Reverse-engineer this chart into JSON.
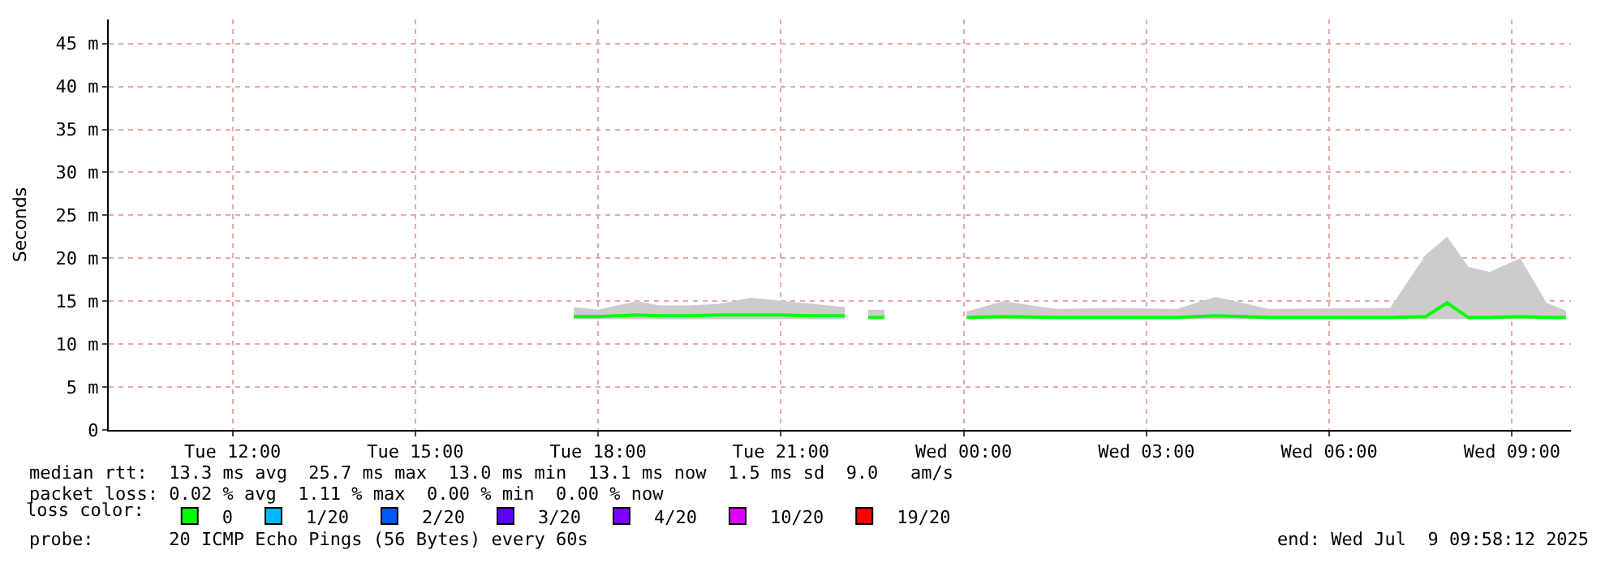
{
  "chart_data": {
    "type": "line",
    "ylabel": "Seconds",
    "legend_title": "loss color:",
    "xlim": [
      "2025-07-08T09:58",
      "2025-07-09T09:58"
    ],
    "xticks": [
      {
        "value": "2025-07-08T12:00",
        "label": "Tue 12:00"
      },
      {
        "value": "2025-07-08T15:00",
        "label": "Tue 15:00"
      },
      {
        "value": "2025-07-08T18:00",
        "label": "Tue 18:00"
      },
      {
        "value": "2025-07-08T21:00",
        "label": "Tue 21:00"
      },
      {
        "value": "2025-07-09T00:00",
        "label": "Wed 00:00"
      },
      {
        "value": "2025-07-09T03:00",
        "label": "Wed 03:00"
      },
      {
        "value": "2025-07-09T06:00",
        "label": "Wed 06:00"
      },
      {
        "value": "2025-07-09T09:00",
        "label": "Wed 09:00"
      }
    ],
    "ylim": [
      0,
      47.8
    ],
    "yticks": [
      0,
      {
        "value": 5,
        "label": "5 m"
      },
      {
        "value": 10,
        "label": "10 m"
      },
      {
        "value": 15,
        "label": "15 m"
      },
      {
        "value": 20,
        "label": "20 m"
      },
      {
        "value": 25,
        "label": "25 m"
      },
      {
        "value": 30,
        "label": "30 m"
      },
      {
        "value": 35,
        "label": "35 m"
      },
      {
        "value": 40,
        "label": "40 m"
      },
      {
        "value": 45,
        "label": "45 m"
      }
    ],
    "grid": true,
    "legend": "bottom left",
    "marker": "none",
    "line_style": "solid",
    "x": [
      "2025-07-08T17:36",
      "2025-07-08T18:00",
      "2025-07-08T18:38",
      "2025-07-08T19:00",
      "2025-07-08T19:30",
      "2025-07-08T20:00",
      "2025-07-08T20:30",
      "2025-07-08T21:00",
      "2025-07-08T21:30",
      "2025-07-08T22:03",
      "2025-07-08T22:15",
      "2025-07-08T22:26",
      "2025-07-08T22:42",
      "2025-07-08T23:00",
      "2025-07-09T00:03",
      "2025-07-09T00:39",
      "2025-07-09T01:30",
      "2025-07-09T02:30",
      "2025-07-09T03:30",
      "2025-07-09T04:08",
      "2025-07-09T05:00",
      "2025-07-09T06:00",
      "2025-07-09T07:00",
      "2025-07-09T07:35",
      "2025-07-09T07:56",
      "2025-07-09T08:17",
      "2025-07-09T08:38",
      "2025-07-09T09:08",
      "2025-07-09T09:34",
      "2025-07-09T09:53"
    ],
    "series": [
      {
        "color": "#00ff00",
        "values": [
          13.2,
          13.2,
          13.4,
          13.3,
          13.3,
          13.4,
          13.4,
          13.4,
          13.3,
          13.3,
          null,
          13.1,
          13.1,
          null,
          13.1,
          13.2,
          13.1,
          13.1,
          13.1,
          13.3,
          13.1,
          13.1,
          13.1,
          13.2,
          14.8,
          13.1,
          13.1,
          13.2,
          13.1,
          13.1
        ],
        "lower": [
          12.9,
          12.9,
          12.9,
          12.9,
          12.9,
          12.9,
          12.9,
          12.9,
          12.9,
          12.9,
          null,
          12.9,
          12.9,
          null,
          12.9,
          12.9,
          12.9,
          12.9,
          12.9,
          12.9,
          12.9,
          12.9,
          12.9,
          12.9,
          12.8,
          12.9,
          12.9,
          12.9,
          12.9,
          12.9
        ],
        "upper": [
          14.3,
          14.0,
          15.0,
          14.5,
          14.5,
          14.7,
          15.4,
          15.0,
          14.7,
          14.3,
          null,
          14.0,
          14.0,
          null,
          13.8,
          15.0,
          14.1,
          14.2,
          14.1,
          15.5,
          14.1,
          14.2,
          14.2,
          20.4,
          22.5,
          19.0,
          18.4,
          20.0,
          14.8,
          13.9
        ]
      },
      {
        "type": "scatter",
        "name": "0",
        "color": "#00ff00",
        "values": [
          null,
          null,
          null,
          null,
          null,
          null,
          null,
          null,
          null,
          null,
          null,
          null,
          null,
          null,
          null,
          null,
          null,
          null,
          null,
          null,
          null,
          null,
          null,
          null,
          null,
          null,
          null,
          null,
          null,
          null
        ]
      },
      {
        "type": "scatter",
        "name": "1/20",
        "color": "#00b8ff",
        "values": [
          null,
          null,
          null,
          null,
          null,
          null,
          null,
          null,
          null,
          null,
          null,
          null,
          null,
          null,
          null,
          null,
          null,
          null,
          null,
          null,
          null,
          null,
          null,
          null,
          null,
          null,
          null,
          null,
          null,
          null
        ]
      },
      {
        "type": "scatter",
        "name": "2/20",
        "color": "#0059ff",
        "values": [
          null,
          null,
          null,
          null,
          null,
          null,
          null,
          null,
          null,
          null,
          null,
          null,
          null,
          null,
          null,
          null,
          null,
          null,
          null,
          null,
          null,
          null,
          null,
          null,
          null,
          null,
          null,
          null,
          null,
          null
        ]
      },
      {
        "type": "scatter",
        "name": "3/20",
        "color": "#5e00ff",
        "values": [
          null,
          null,
          null,
          null,
          null,
          null,
          null,
          null,
          null,
          null,
          null,
          null,
          null,
          null,
          null,
          null,
          null,
          null,
          null,
          null,
          null,
          null,
          null,
          null,
          null,
          null,
          null,
          null,
          null,
          null
        ]
      },
      {
        "type": "scatter",
        "name": "4/20",
        "color": "#7e00ff",
        "values": [
          null,
          null,
          null,
          null,
          null,
          null,
          null,
          null,
          null,
          null,
          null,
          null,
          null,
          null,
          null,
          null,
          null,
          null,
          null,
          null,
          null,
          null,
          null,
          null,
          null,
          null,
          null,
          null,
          null,
          null
        ]
      },
      {
        "type": "scatter",
        "name": "10/20",
        "color": "#dd00ff",
        "values": [
          null,
          null,
          null,
          null,
          null,
          null,
          null,
          null,
          null,
          null,
          null,
          null,
          null,
          null,
          null,
          null,
          null,
          null,
          null,
          null,
          null,
          null,
          null,
          null,
          null,
          null,
          null,
          null,
          null,
          null
        ]
      },
      {
        "type": "scatter",
        "name": "19/20",
        "color": "#ff0000",
        "values": [
          null,
          null,
          null,
          null,
          null,
          null,
          null,
          null,
          null,
          null,
          null,
          null,
          null,
          null,
          null,
          null,
          null,
          null,
          null,
          null,
          null,
          null,
          null,
          null,
          null,
          null,
          null,
          null,
          null,
          null
        ]
      }
    ],
    "annotations": [
      "median rtt:  13.3 ms avg  25.7 ms max  13.0 ms min  13.1 ms now  1.5 ms sd  9.0   am/s",
      "packet loss: 0.02 % avg  1.11 % max  0.00 % min  0.00 % now",
      "probe:       20 ICMP Echo Pings (56 Bytes) every 60s",
      "end: Wed Jul  9 09:58:12 2025"
    ]
  }
}
